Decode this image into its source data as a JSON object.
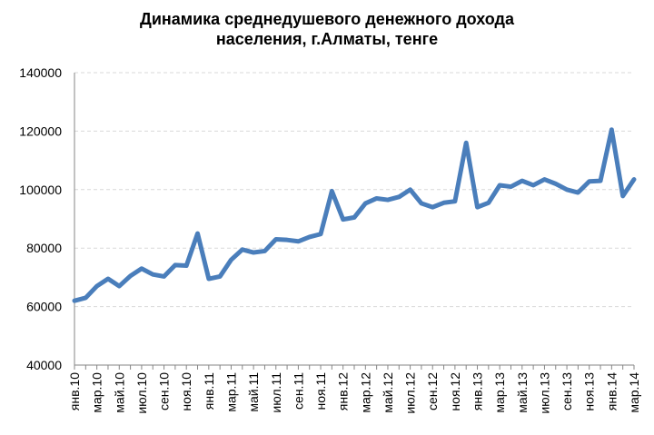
{
  "chart_data": {
    "type": "line",
    "title_lines": [
      "Динамика среднедушевого денежного дохода",
      "населения, г.Алматы, тенге"
    ],
    "xlabel": "",
    "ylabel": "",
    "ylim": [
      40000,
      140000
    ],
    "yticks": [
      "140000",
      "120000",
      "100000",
      "80000",
      "60000",
      "40000"
    ],
    "ytick_values": [
      140000,
      120000,
      100000,
      80000,
      60000,
      40000
    ],
    "x_labels": [
      {
        "index": 0,
        "label": "янв.10"
      },
      {
        "index": 2,
        "label": "мар.10"
      },
      {
        "index": 4,
        "label": "май.10"
      },
      {
        "index": 6,
        "label": "июл.10"
      },
      {
        "index": 8,
        "label": "сен.10"
      },
      {
        "index": 10,
        "label": "ноя.10"
      },
      {
        "index": 12,
        "label": "янв.11"
      },
      {
        "index": 14,
        "label": "мар.11"
      },
      {
        "index": 16,
        "label": "май.11"
      },
      {
        "index": 18,
        "label": "июл.11"
      },
      {
        "index": 20,
        "label": "сен.11"
      },
      {
        "index": 22,
        "label": "ноя.11"
      },
      {
        "index": 24,
        "label": "янв.12"
      },
      {
        "index": 26,
        "label": "мар.12"
      },
      {
        "index": 28,
        "label": "май.12"
      },
      {
        "index": 30,
        "label": "июл.12"
      },
      {
        "index": 32,
        "label": "сен.12"
      },
      {
        "index": 34,
        "label": "ноя.12"
      },
      {
        "index": 36,
        "label": "янв.13"
      },
      {
        "index": 38,
        "label": "мар.13"
      },
      {
        "index": 40,
        "label": "май.13"
      },
      {
        "index": 42,
        "label": "июл.13"
      },
      {
        "index": 44,
        "label": "сен.13"
      },
      {
        "index": 46,
        "label": "ноя.13"
      },
      {
        "index": 48,
        "label": "янв.14"
      },
      {
        "index": 50,
        "label": "мар.14"
      }
    ],
    "series": [
      {
        "color": "#4a7ebb",
        "values": [
          62000,
          63000,
          67000,
          69500,
          67000,
          70500,
          73000,
          71000,
          70300,
          74200,
          74000,
          85000,
          69500,
          70300,
          76000,
          79500,
          78500,
          79000,
          83000,
          82800,
          82300,
          83800,
          84800,
          99500,
          89800,
          90500,
          95300,
          97000,
          96500,
          97500,
          100000,
          95300,
          94000,
          95500,
          96000,
          116000,
          94000,
          95500,
          101500,
          101000,
          103000,
          101500,
          103500,
          102000,
          100000,
          99000,
          102800,
          103000,
          120500,
          97800,
          103500
        ]
      }
    ],
    "grid": true,
    "legend": "none"
  }
}
